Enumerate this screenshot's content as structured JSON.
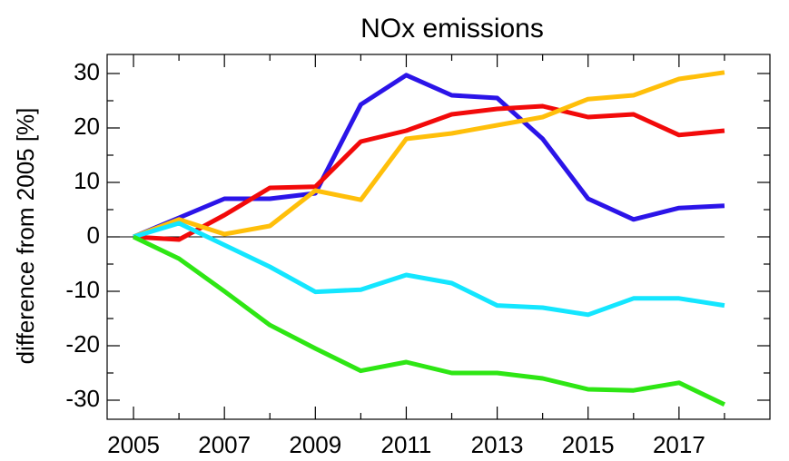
{
  "chart_data": {
    "type": "line",
    "title": "NOx emissions",
    "y_label": "difference from 2005 [%]",
    "x": [
      2005,
      2006,
      2007,
      2008,
      2009,
      2010,
      2011,
      2012,
      2013,
      2014,
      2015,
      2016,
      2017,
      2018
    ],
    "series": [
      {
        "color": "#2b14e8",
        "values": [
          0,
          3.5,
          7,
          7,
          8,
          24.3,
          29.7,
          26,
          25.5,
          18,
          7,
          3.2,
          5.3,
          5.7
        ]
      },
      {
        "color": "#f20a0a",
        "values": [
          0,
          -0.5,
          4,
          9,
          9.2,
          17.5,
          19.5,
          22.5,
          23.5,
          24,
          22,
          22.5,
          18.7,
          19.5
        ]
      },
      {
        "color": "#ffbf0a",
        "values": [
          0,
          3.2,
          0.5,
          2,
          8.5,
          6.8,
          18,
          19,
          20.5,
          22,
          25.3,
          26,
          29,
          30.2
        ]
      },
      {
        "color": "#14e6ff",
        "values": [
          0,
          2.5,
          -1.5,
          -5.5,
          -10.1,
          -9.7,
          -7,
          -8.5,
          -12.6,
          -13,
          -14.3,
          -11.3,
          -11.3,
          -12.6
        ]
      },
      {
        "color": "#2ee614",
        "values": [
          0,
          -4,
          -10,
          -16.2,
          -20.5,
          -24.6,
          -23,
          -25,
          -25,
          -26,
          -28,
          -28.2,
          -26.8,
          -30.8
        ]
      }
    ],
    "xlim": [
      2004.42,
      2019
    ],
    "ylim": [
      -33.5,
      33.5
    ],
    "xticks": [
      2005,
      2007,
      2009,
      2011,
      2013,
      2015,
      2017
    ],
    "yticks": [
      -30,
      -20,
      -10,
      0,
      10,
      20,
      30
    ],
    "xminorticks": [
      2006,
      2008,
      2010,
      2012,
      2014,
      2016,
      2018
    ],
    "yminorticks": [
      -25,
      -15,
      -5,
      5,
      15,
      25
    ],
    "reference_line": 0
  }
}
